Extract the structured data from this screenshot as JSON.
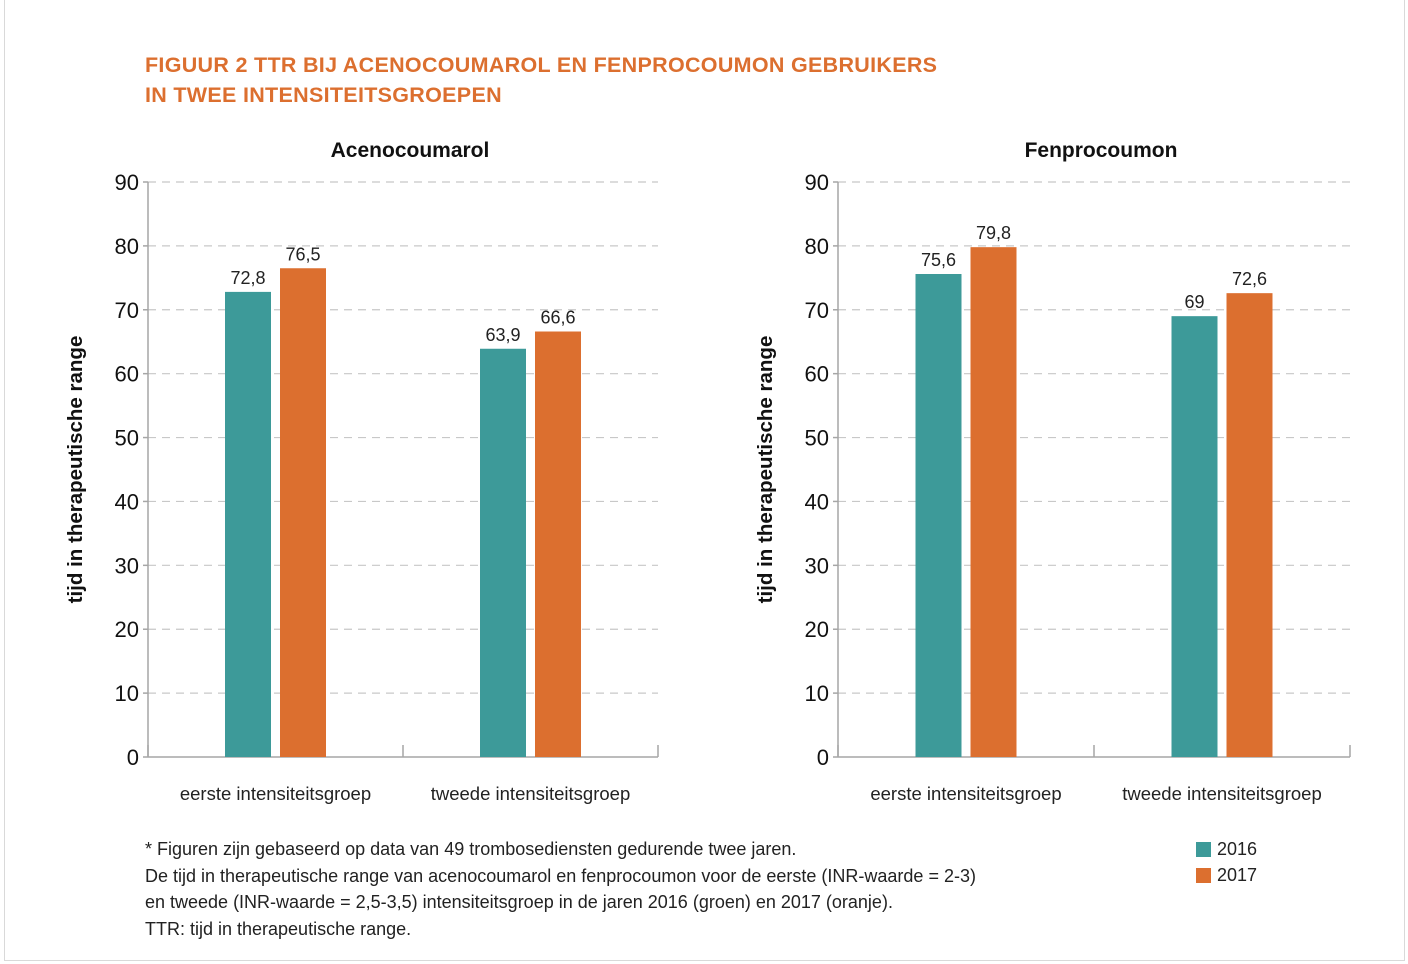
{
  "figure": {
    "title_lines": [
      "FIGUUR 2  TTR BIJ ACENOCOUMAROL EN FENPROCOUMON GEBRUIKERS",
      "IN TWEE INTENSITEITSGROEPEN"
    ],
    "accent_color": "#dc6f2f"
  },
  "chart_data": [
    {
      "type": "bar",
      "title": "Acenocoumarol",
      "ylabel": "tijd in therapeutische range",
      "xlabel": "",
      "ylim": [
        0,
        90
      ],
      "yticks": [
        "0",
        "10",
        "20",
        "30",
        "40",
        "50",
        "60",
        "70",
        "80",
        "90"
      ],
      "grid": "horizontal dashed",
      "categories": [
        "eerste intensiteitsgroep",
        "tweede intensiteitsgroep"
      ],
      "series": [
        {
          "name": "2016",
          "color": "#3d9a99",
          "values": [
            72.8,
            63.9
          ],
          "labels": [
            "72,8",
            "63,9"
          ]
        },
        {
          "name": "2017",
          "color": "#dc6f2f",
          "values": [
            76.5,
            66.6
          ],
          "labels": [
            "76,5",
            "66,6"
          ]
        }
      ]
    },
    {
      "type": "bar",
      "title": "Fenprocoumon",
      "ylabel": "tijd in therapeutische range",
      "xlabel": "",
      "ylim": [
        0,
        90
      ],
      "yticks": [
        "0",
        "10",
        "20",
        "30",
        "40",
        "50",
        "60",
        "70",
        "80",
        "90"
      ],
      "grid": "horizontal dashed",
      "categories": [
        "eerste intensiteitsgroep",
        "tweede intensiteitsgroep"
      ],
      "series": [
        {
          "name": "2016",
          "color": "#3d9a99",
          "values": [
            75.6,
            69
          ],
          "labels": [
            "75,6",
            "69"
          ]
        },
        {
          "name": "2017",
          "color": "#dc6f2f",
          "values": [
            79.8,
            72.6
          ],
          "labels": [
            "79,8",
            "72,6"
          ]
        }
      ]
    }
  ],
  "notes": [
    "* Figuren zijn gebaseerd op data van 49 trombosediensten gedurende twee jaren.",
    "De tijd in therapeutische range van acenocoumarol en fenprocoumon voor de eerste (INR-waarde = 2-3)",
    "en tweede (INR-waarde = 2,5-3,5) intensiteitsgroep in de jaren 2016 (groen) en 2017 (oranje).",
    "TTR: tijd in therapeutische range."
  ],
  "legend": {
    "position": "bottom-right",
    "items": [
      {
        "label": "2016",
        "color": "#3d9a99"
      },
      {
        "label": "2017",
        "color": "#dc6f2f"
      }
    ]
  }
}
